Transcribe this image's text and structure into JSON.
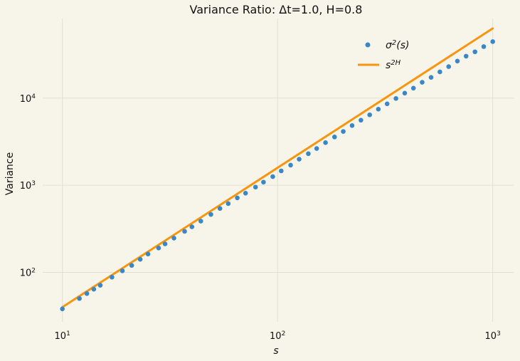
{
  "chart_data": {
    "type": "scatter",
    "title": "Variance Ratio: Δt=1.0, H=0.8",
    "xlabel": "s",
    "ylabel": "Variance",
    "xscale": "log",
    "yscale": "log",
    "xlim": [
      8.1,
      1250
    ],
    "ylim": [
      27,
      82000
    ],
    "grid": true,
    "legend_position": "top-right",
    "x_ticks": [
      {
        "value": 10,
        "base": "10",
        "exp": "1"
      },
      {
        "value": 100,
        "base": "10",
        "exp": "2"
      },
      {
        "value": 1000,
        "base": "10",
        "exp": "3"
      }
    ],
    "y_ticks": [
      {
        "value": 100,
        "base": "10",
        "exp": "2"
      },
      {
        "value": 1000,
        "base": "10",
        "exp": "3"
      },
      {
        "value": 10000,
        "base": "10",
        "exp": "4"
      }
    ],
    "series": [
      {
        "name": "σ²(s)",
        "kind": "scatter",
        "color": "#3a87c8",
        "x": [
          10,
          12,
          13,
          14,
          15,
          17,
          19,
          21,
          23,
          25,
          28,
          30,
          33,
          37,
          40,
          44,
          49,
          54,
          59,
          65,
          71,
          79,
          86,
          95,
          104,
          115,
          126,
          139,
          152,
          167,
          184,
          202,
          222,
          244,
          268,
          294,
          323,
          355,
          390,
          428,
          470,
          517,
          568,
          624,
          685,
          752,
          827,
          908,
          1000
        ],
        "y": [
          38,
          50,
          57,
          64,
          71,
          88,
          104,
          120,
          141,
          162,
          190,
          212,
          247,
          295,
          333,
          387,
          462,
          540,
          615,
          715,
          810,
          950,
          1085,
          1255,
          1460,
          1700,
          1990,
          2300,
          2640,
          3080,
          3580,
          4140,
          4840,
          5580,
          6430,
          7470,
          8600,
          9900,
          11400,
          13000,
          15200,
          17300,
          20000,
          23000,
          26600,
          30300,
          34000,
          39000,
          44500
        ]
      },
      {
        "name": "s^2H",
        "kind": "line",
        "color": "#f7950f",
        "x": [
          10,
          1000
        ],
        "y": [
          39.8,
          63100
        ]
      }
    ]
  }
}
